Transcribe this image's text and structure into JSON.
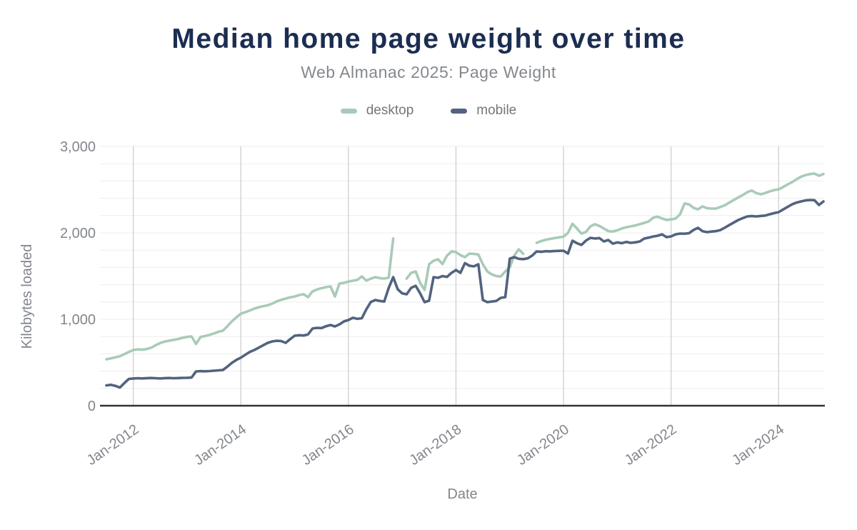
{
  "header": {
    "title": "Median home page weight over time",
    "subtitle": "Web Almanac 2025: Page Weight"
  },
  "legend": [
    {
      "label": "desktop",
      "color": "#a8cbb8"
    },
    {
      "label": "mobile",
      "color": "#52637e"
    }
  ],
  "colors": {
    "title": "#1b2d51",
    "label_gray": "#82868c",
    "axis_line": "#333333",
    "v_gridline": "#cfcfcf",
    "h_gridline": "#ededed",
    "desktop": "#a8cbb8",
    "mobile": "#52637e"
  },
  "chart_data": {
    "type": "line",
    "title": "Median home page weight over time",
    "subtitle": "Web Almanac 2025: Page Weight",
    "xlabel": "Date",
    "ylabel": "Kilobytes loaded",
    "ylim": [
      0,
      3000
    ],
    "y_ticks": [
      {
        "value": 0,
        "label": "0"
      },
      {
        "value": 1000,
        "label": "1,000"
      },
      {
        "value": 2000,
        "label": "2,000"
      },
      {
        "value": 3000,
        "label": "3,000"
      }
    ],
    "y_minor_grid_step": 200,
    "grid": true,
    "legend_position": "top",
    "x_start_month": "2011-07",
    "x_end_month": "2024-11",
    "x_ticks": [
      {
        "label": "Jan-2012",
        "month": "2012-01"
      },
      {
        "label": "Jan-2014",
        "month": "2014-01"
      },
      {
        "label": "Jan-2016",
        "month": "2016-01"
      },
      {
        "label": "Jan-2018",
        "month": "2018-01"
      },
      {
        "label": "Jan-2020",
        "month": "2020-01"
      },
      {
        "label": "Jan-2022",
        "month": "2022-01"
      },
      {
        "label": "Jan-2024",
        "month": "2024-01"
      }
    ],
    "series": [
      {
        "name": "desktop",
        "color": "#a8cbb8",
        "monthly_values_kb": [
          537,
          548,
          560,
          572,
          596,
          622,
          645,
          652,
          648,
          655,
          672,
          700,
          726,
          742,
          752,
          762,
          772,
          786,
          796,
          802,
          715,
          795,
          806,
          820,
          836,
          856,
          868,
          920,
          976,
          1022,
          1065,
          1082,
          1102,
          1124,
          1140,
          1152,
          1162,
          1182,
          1207,
          1226,
          1240,
          1254,
          1264,
          1280,
          1290,
          1256,
          1322,
          1345,
          1360,
          1372,
          1380,
          1264,
          1413,
          1422,
          1436,
          1446,
          1456,
          1496,
          1447,
          1470,
          1488,
          1476,
          1471,
          1482,
          1934,
          null,
          null,
          1471,
          1537,
          1554,
          1420,
          1340,
          1636,
          1678,
          1694,
          1640,
          1736,
          1785,
          1777,
          1742,
          1719,
          1760,
          1756,
          1750,
          1636,
          1554,
          1520,
          1500,
          1495,
          1554,
          1600,
          1736,
          1810,
          1758,
          null,
          null,
          1884,
          1905,
          1920,
          1930,
          1940,
          1948,
          1955,
          2000,
          2105,
          2050,
          1992,
          2010,
          2074,
          2100,
          2080,
          2050,
          2020,
          2016,
          2030,
          2050,
          2065,
          2075,
          2085,
          2100,
          2115,
          2132,
          2174,
          2188,
          2165,
          2150,
          2155,
          2165,
          2215,
          2340,
          2330,
          2290,
          2273,
          2306,
          2285,
          2281,
          2280,
          2300,
          2320,
          2350,
          2380,
          2410,
          2438,
          2470,
          2490,
          2460,
          2446,
          2460,
          2480,
          2495,
          2504,
          2530,
          2560,
          2587,
          2620,
          2650,
          2669,
          2680,
          2686,
          2661,
          2680
        ]
      },
      {
        "name": "mobile",
        "color": "#52637e",
        "monthly_values_kb": [
          235,
          242,
          230,
          210,
          262,
          310,
          315,
          318,
          316,
          319,
          321,
          318,
          316,
          319,
          321,
          318,
          320,
          322,
          323,
          326,
          397,
          400,
          398,
          401,
          405,
          409,
          413,
          452,
          496,
          530,
          556,
          590,
          622,
          645,
          672,
          700,
          727,
          744,
          751,
          748,
          727,
          770,
          810,
          816,
          812,
          826,
          893,
          901,
          898,
          920,
          934,
          917,
          941,
          975,
          992,
          1017,
          1005,
          1012,
          1116,
          1200,
          1223,
          1212,
          1205,
          1364,
          1488,
          1347,
          1300,
          1289,
          1364,
          1388,
          1300,
          1198,
          1215,
          1488,
          1480,
          1500,
          1490,
          1537,
          1570,
          1537,
          1650,
          1620,
          1612,
          1636,
          1223,
          1198,
          1205,
          1212,
          1248,
          1256,
          1702,
          1719,
          1700,
          1696,
          1705,
          1736,
          1785,
          1780,
          1788,
          1786,
          1790,
          1792,
          1793,
          1760,
          1909,
          1880,
          1860,
          1910,
          1942,
          1935,
          1940,
          1901,
          1917,
          1875,
          1890,
          1880,
          1895,
          1884,
          1890,
          1900,
          1934,
          1945,
          1958,
          1967,
          1983,
          1950,
          1959,
          1983,
          1992,
          1990,
          1996,
          2033,
          2058,
          2020,
          2008,
          2015,
          2020,
          2032,
          2060,
          2090,
          2120,
          2149,
          2170,
          2190,
          2195,
          2190,
          2196,
          2200,
          2215,
          2228,
          2240,
          2270,
          2300,
          2330,
          2350,
          2364,
          2375,
          2380,
          2378,
          2322,
          2364
        ]
      }
    ]
  }
}
